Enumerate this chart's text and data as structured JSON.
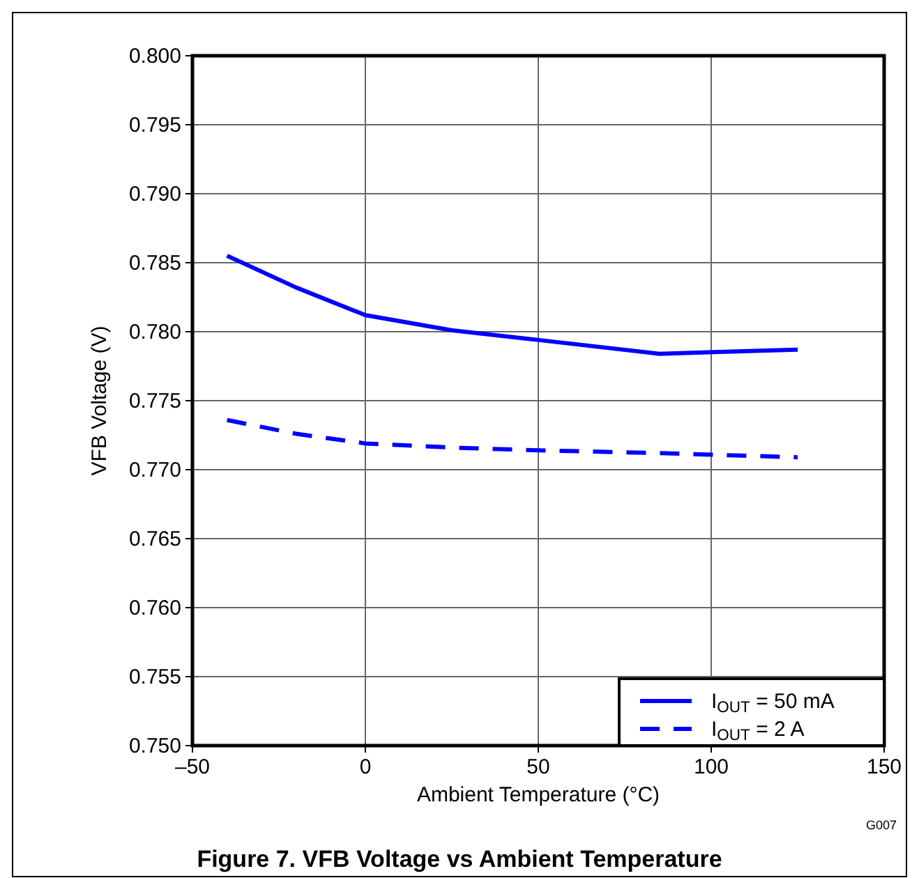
{
  "chart_data": {
    "type": "line",
    "title": "Figure 7. VFB Voltage vs Ambient Temperature",
    "xlabel": "Ambient Temperature (°C)",
    "ylabel": "VFB Voltage (V)",
    "annotations": [
      "G007"
    ],
    "x": [
      -40,
      -20,
      0,
      25,
      50,
      85,
      125
    ],
    "series": [
      {
        "name": "I$_{OUT}$  =  50 mA",
        "color": "#0000ff",
        "line_style": "solid",
        "values": [
          0.7855,
          0.7832,
          0.7812,
          0.7801,
          0.7794,
          0.7784,
          0.7787
        ]
      },
      {
        "name": "I$_{OUT}$  =  2 A",
        "color": "#0000ff",
        "line_style": "dashed",
        "values": [
          0.7736,
          0.7726,
          0.7719,
          0.7716,
          0.7714,
          0.7712,
          0.7709
        ]
      }
    ],
    "xlim": [
      -50,
      150
    ],
    "xticks": [
      {
        "value": -50,
        "label": "–50"
      },
      0,
      50,
      100,
      150
    ],
    "ylim": [
      0.75,
      0.8
    ],
    "yticks": [
      {
        "value": 0.75,
        "label": "0.750"
      },
      0.755,
      {
        "value": 0.76,
        "label": "0.760"
      },
      0.765,
      {
        "value": 0.77,
        "label": "0.770"
      },
      0.775,
      {
        "value": 0.78,
        "label": "0.780"
      },
      0.785,
      {
        "value": 0.79,
        "label": "0.790"
      },
      0.795,
      {
        "value": 0.8,
        "label": "0.800"
      }
    ],
    "grid": true,
    "legend": "bottom right",
    "marker": "none"
  }
}
